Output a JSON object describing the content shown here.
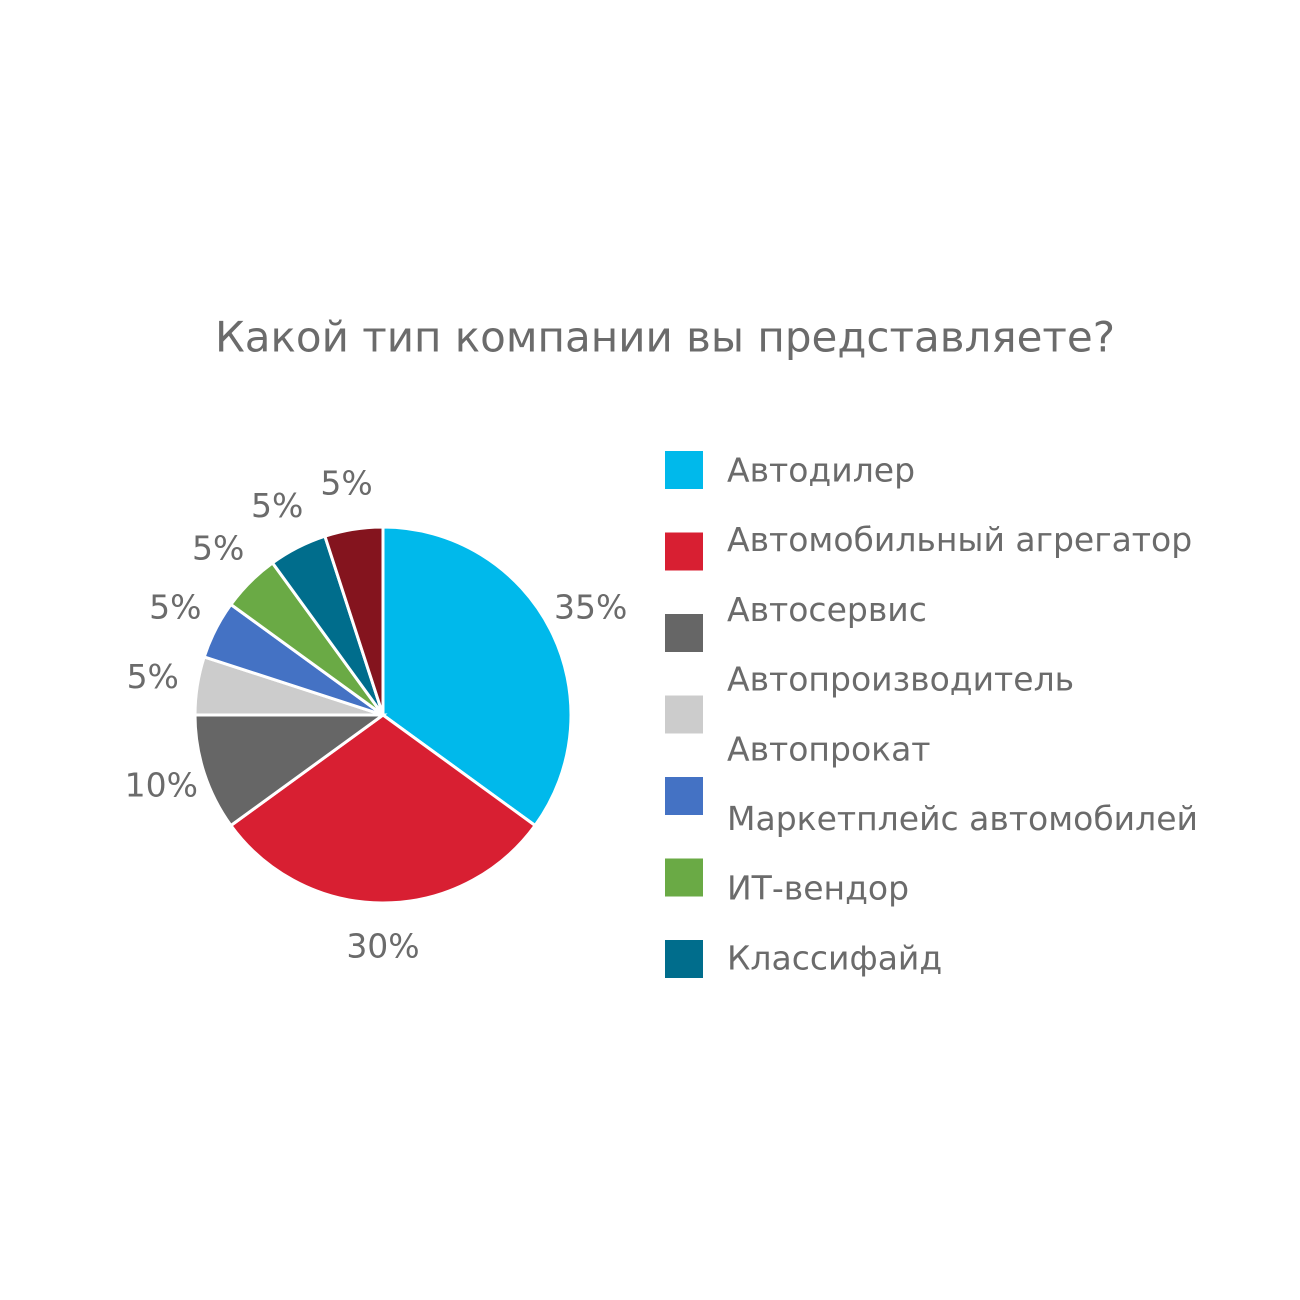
{
  "chart_data": {
    "type": "pie",
    "title": "Какой тип компании вы представляете?",
    "categories": [
      "Автодилер",
      "Автомобильный агрегатор",
      "Автосервис",
      "Автопроизводитель",
      "Автопрокат",
      "Маркетплейс автомобилей",
      "ИТ-вендор",
      "Классифайд"
    ],
    "values": [
      35,
      30,
      10,
      5,
      5,
      5,
      5,
      5
    ],
    "value_labels": [
      "35%",
      "30%",
      "10%",
      "5%",
      "5%",
      "5%",
      "5%",
      "5%"
    ],
    "colors": [
      "#00b9eb",
      "#d81f32",
      "#666666",
      "#cccccc",
      "#4472c4",
      "#6aaa45",
      "#006d8c",
      "#84141e"
    ]
  }
}
